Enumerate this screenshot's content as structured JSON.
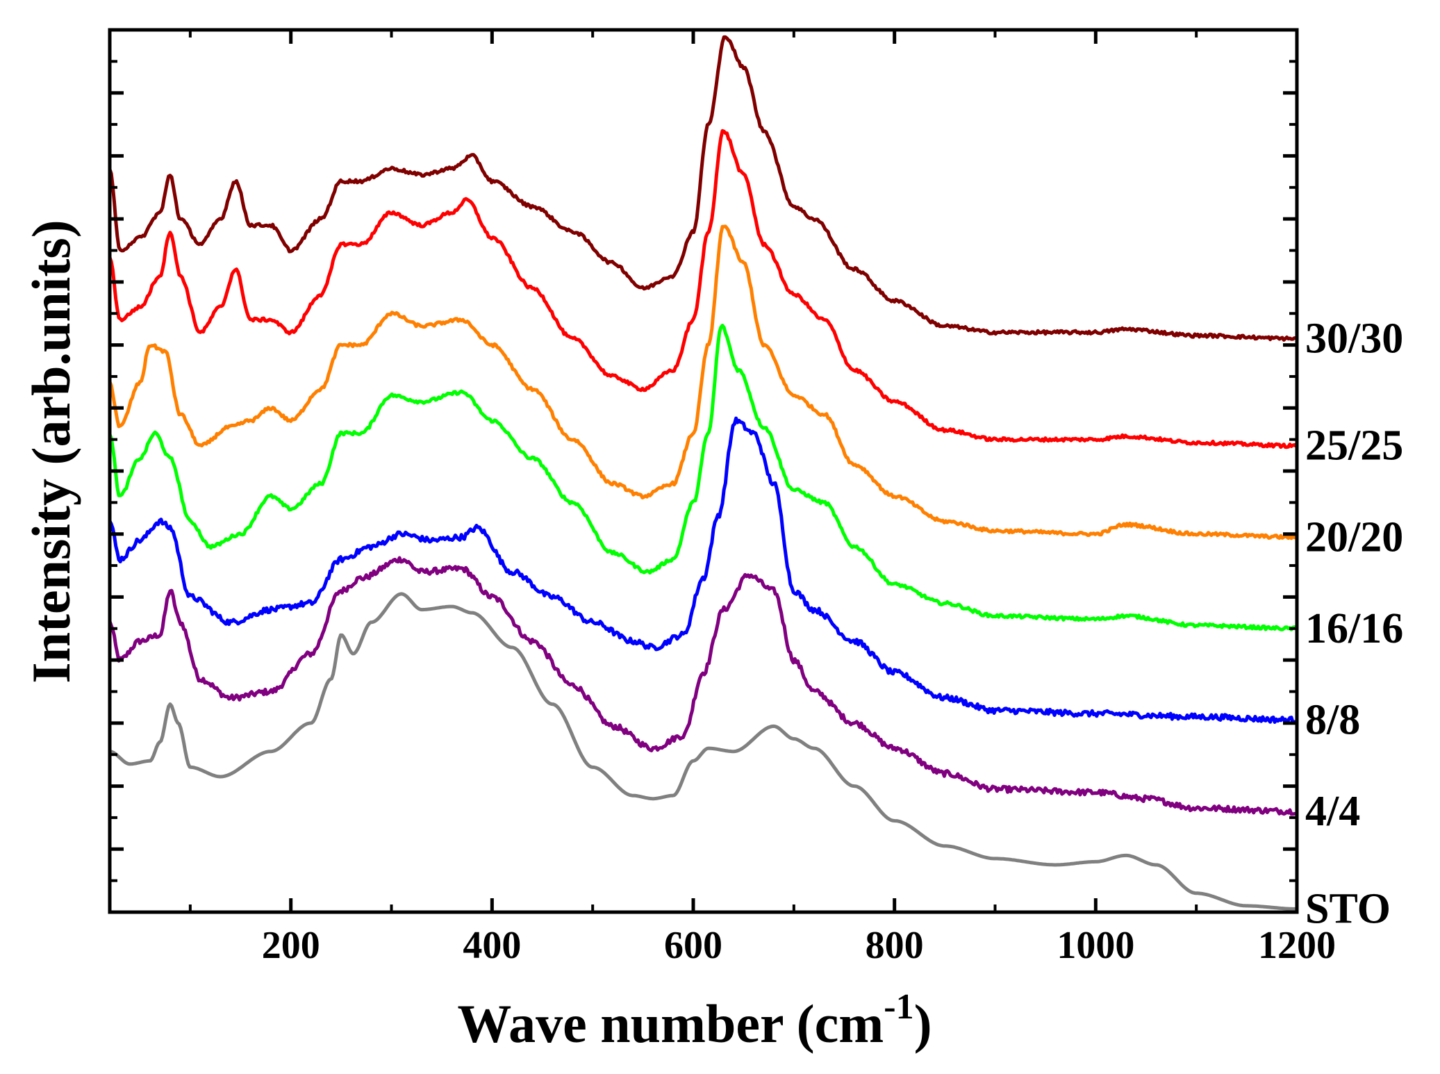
{
  "chart_data": {
    "type": "line",
    "title": "",
    "xlabel": "Wave number (cm",
    "xlabel_superscript": "-1",
    "xlabel_close": ")",
    "ylabel": "Intensity (arb.units)",
    "xlim": [
      20,
      1200
    ],
    "ylim": [
      0,
      14
    ],
    "x_ticks": [
      200,
      400,
      600,
      800,
      1000,
      1200
    ],
    "x_tick_labels": [
      "200",
      "400",
      "600",
      "800",
      "1000",
      "1200"
    ],
    "y_tick_labels_shown": false,
    "grid": false,
    "legend": "labels at right end of each trace",
    "series": [
      {
        "name": "STO",
        "color": "#808080",
        "points": [
          [
            20,
            2.55
          ],
          [
            40,
            2.35
          ],
          [
            60,
            2.4
          ],
          [
            70,
            2.7
          ],
          [
            80,
            3.3
          ],
          [
            88,
            3.0
          ],
          [
            100,
            2.3
          ],
          [
            130,
            2.15
          ],
          [
            180,
            2.55
          ],
          [
            220,
            3.0
          ],
          [
            240,
            3.7
          ],
          [
            250,
            4.4
          ],
          [
            262,
            4.1
          ],
          [
            280,
            4.6
          ],
          [
            310,
            5.05
          ],
          [
            330,
            4.8
          ],
          [
            360,
            4.85
          ],
          [
            380,
            4.75
          ],
          [
            420,
            4.2
          ],
          [
            460,
            3.3
          ],
          [
            500,
            2.3
          ],
          [
            540,
            1.85
          ],
          [
            560,
            1.8
          ],
          [
            580,
            1.85
          ],
          [
            600,
            2.4
          ],
          [
            615,
            2.6
          ],
          [
            640,
            2.55
          ],
          [
            680,
            2.95
          ],
          [
            700,
            2.75
          ],
          [
            720,
            2.6
          ],
          [
            760,
            2.0
          ],
          [
            800,
            1.45
          ],
          [
            850,
            1.05
          ],
          [
            900,
            0.85
          ],
          [
            960,
            0.75
          ],
          [
            1000,
            0.8
          ],
          [
            1030,
            0.9
          ],
          [
            1060,
            0.75
          ],
          [
            1100,
            0.3
          ],
          [
            1150,
            0.1
          ],
          [
            1200,
            0.05
          ]
        ]
      },
      {
        "name": "4/4",
        "color": "#800080",
        "points": [
          [
            20,
            4.6
          ],
          [
            30,
            4.0
          ],
          [
            50,
            4.3
          ],
          [
            70,
            4.4
          ],
          [
            80,
            5.1
          ],
          [
            90,
            4.6
          ],
          [
            110,
            3.7
          ],
          [
            140,
            3.4
          ],
          [
            180,
            3.5
          ],
          [
            220,
            4.1
          ],
          [
            250,
            5.1
          ],
          [
            270,
            5.3
          ],
          [
            310,
            5.6
          ],
          [
            330,
            5.4
          ],
          [
            370,
            5.45
          ],
          [
            400,
            5.0
          ],
          [
            440,
            4.3
          ],
          [
            480,
            3.6
          ],
          [
            520,
            2.95
          ],
          [
            560,
            2.6
          ],
          [
            590,
            2.8
          ],
          [
            610,
            3.8
          ],
          [
            630,
            4.8
          ],
          [
            655,
            5.35
          ],
          [
            680,
            5.1
          ],
          [
            700,
            4.0
          ],
          [
            720,
            3.5
          ],
          [
            760,
            3.0
          ],
          [
            800,
            2.6
          ],
          [
            850,
            2.2
          ],
          [
            900,
            1.95
          ],
          [
            1000,
            1.9
          ],
          [
            1050,
            1.8
          ],
          [
            1100,
            1.65
          ],
          [
            1200,
            1.6
          ]
        ]
      },
      {
        "name": "8/8",
        "color": "#0000ff",
        "points": [
          [
            20,
            6.2
          ],
          [
            30,
            5.6
          ],
          [
            50,
            5.9
          ],
          [
            70,
            6.2
          ],
          [
            80,
            6.1
          ],
          [
            100,
            5.0
          ],
          [
            140,
            4.6
          ],
          [
            180,
            4.8
          ],
          [
            220,
            4.9
          ],
          [
            250,
            5.6
          ],
          [
            280,
            5.8
          ],
          [
            310,
            6.0
          ],
          [
            340,
            5.9
          ],
          [
            370,
            5.95
          ],
          [
            385,
            6.1
          ],
          [
            420,
            5.4
          ],
          [
            460,
            5.0
          ],
          [
            500,
            4.6
          ],
          [
            540,
            4.3
          ],
          [
            560,
            4.2
          ],
          [
            590,
            4.4
          ],
          [
            610,
            5.3
          ],
          [
            625,
            6.3
          ],
          [
            642,
            7.8
          ],
          [
            660,
            7.6
          ],
          [
            680,
            6.8
          ],
          [
            700,
            5.1
          ],
          [
            720,
            4.8
          ],
          [
            760,
            4.3
          ],
          [
            800,
            3.8
          ],
          [
            850,
            3.4
          ],
          [
            900,
            3.2
          ],
          [
            1000,
            3.15
          ],
          [
            1100,
            3.1
          ],
          [
            1200,
            3.05
          ]
        ]
      },
      {
        "name": "16/16",
        "color": "#00ff00",
        "points": [
          [
            20,
            7.6
          ],
          [
            30,
            6.6
          ],
          [
            50,
            7.2
          ],
          [
            65,
            7.6
          ],
          [
            80,
            7.2
          ],
          [
            100,
            6.2
          ],
          [
            120,
            5.8
          ],
          [
            150,
            6.0
          ],
          [
            180,
            6.6
          ],
          [
            200,
            6.4
          ],
          [
            230,
            6.8
          ],
          [
            250,
            7.6
          ],
          [
            270,
            7.6
          ],
          [
            300,
            8.2
          ],
          [
            330,
            8.1
          ],
          [
            370,
            8.25
          ],
          [
            400,
            7.8
          ],
          [
            440,
            7.2
          ],
          [
            480,
            6.5
          ],
          [
            520,
            5.7
          ],
          [
            555,
            5.4
          ],
          [
            580,
            5.6
          ],
          [
            600,
            6.5
          ],
          [
            615,
            7.6
          ],
          [
            628,
            9.3
          ],
          [
            645,
            8.6
          ],
          [
            670,
            7.7
          ],
          [
            700,
            6.7
          ],
          [
            730,
            6.5
          ],
          [
            760,
            5.8
          ],
          [
            800,
            5.2
          ],
          [
            850,
            4.9
          ],
          [
            900,
            4.7
          ],
          [
            1000,
            4.65
          ],
          [
            1030,
            4.7
          ],
          [
            1100,
            4.55
          ],
          [
            1200,
            4.5
          ]
        ]
      },
      {
        "name": "20/20",
        "color": "#ff8000",
        "points": [
          [
            20,
            8.4
          ],
          [
            30,
            7.7
          ],
          [
            50,
            8.4
          ],
          [
            60,
            9.0
          ],
          [
            75,
            8.9
          ],
          [
            90,
            7.9
          ],
          [
            110,
            7.4
          ],
          [
            140,
            7.7
          ],
          [
            160,
            7.8
          ],
          [
            180,
            8.0
          ],
          [
            200,
            7.8
          ],
          [
            230,
            8.3
          ],
          [
            250,
            9.0
          ],
          [
            270,
            9.0
          ],
          [
            300,
            9.5
          ],
          [
            330,
            9.3
          ],
          [
            370,
            9.4
          ],
          [
            400,
            9.0
          ],
          [
            440,
            8.3
          ],
          [
            480,
            7.5
          ],
          [
            520,
            6.8
          ],
          [
            550,
            6.6
          ],
          [
            580,
            6.8
          ],
          [
            600,
            7.6
          ],
          [
            615,
            9.0
          ],
          [
            630,
            10.9
          ],
          [
            650,
            10.3
          ],
          [
            670,
            9.0
          ],
          [
            700,
            8.2
          ],
          [
            730,
            7.9
          ],
          [
            760,
            7.1
          ],
          [
            800,
            6.6
          ],
          [
            850,
            6.2
          ],
          [
            900,
            6.05
          ],
          [
            1000,
            6.0
          ],
          [
            1030,
            6.15
          ],
          [
            1100,
            6.0
          ],
          [
            1200,
            5.95
          ]
        ]
      },
      {
        "name": "25/25",
        "color": "#ff0000",
        "points": [
          [
            20,
            10.4
          ],
          [
            30,
            9.4
          ],
          [
            50,
            9.6
          ],
          [
            70,
            10.1
          ],
          [
            80,
            10.8
          ],
          [
            90,
            10.1
          ],
          [
            110,
            9.2
          ],
          [
            130,
            9.6
          ],
          [
            145,
            10.2
          ],
          [
            160,
            9.4
          ],
          [
            180,
            9.4
          ],
          [
            200,
            9.2
          ],
          [
            230,
            9.8
          ],
          [
            250,
            10.6
          ],
          [
            270,
            10.6
          ],
          [
            300,
            11.1
          ],
          [
            330,
            10.9
          ],
          [
            360,
            11.1
          ],
          [
            375,
            11.3
          ],
          [
            400,
            10.7
          ],
          [
            440,
            9.9
          ],
          [
            480,
            9.1
          ],
          [
            520,
            8.5
          ],
          [
            550,
            8.3
          ],
          [
            580,
            8.6
          ],
          [
            600,
            9.4
          ],
          [
            615,
            10.8
          ],
          [
            630,
            12.4
          ],
          [
            650,
            11.7
          ],
          [
            670,
            10.6
          ],
          [
            700,
            9.8
          ],
          [
            730,
            9.4
          ],
          [
            760,
            8.6
          ],
          [
            800,
            8.1
          ],
          [
            850,
            7.65
          ],
          [
            900,
            7.5
          ],
          [
            1000,
            7.5
          ],
          [
            1030,
            7.55
          ],
          [
            1100,
            7.45
          ],
          [
            1200,
            7.4
          ]
        ]
      },
      {
        "name": "30/30",
        "color": "#800000",
        "points": [
          [
            20,
            11.8
          ],
          [
            30,
            10.5
          ],
          [
            50,
            10.7
          ],
          [
            70,
            11.1
          ],
          [
            80,
            11.7
          ],
          [
            90,
            11.0
          ],
          [
            110,
            10.6
          ],
          [
            130,
            11.0
          ],
          [
            145,
            11.6
          ],
          [
            160,
            10.9
          ],
          [
            180,
            10.9
          ],
          [
            200,
            10.5
          ],
          [
            230,
            11.0
          ],
          [
            250,
            11.6
          ],
          [
            270,
            11.6
          ],
          [
            300,
            11.8
          ],
          [
            330,
            11.7
          ],
          [
            360,
            11.8
          ],
          [
            380,
            12.0
          ],
          [
            400,
            11.6
          ],
          [
            440,
            11.2
          ],
          [
            480,
            10.8
          ],
          [
            520,
            10.3
          ],
          [
            550,
            9.9
          ],
          [
            580,
            10.1
          ],
          [
            600,
            10.8
          ],
          [
            615,
            12.5
          ],
          [
            632,
            13.9
          ],
          [
            650,
            13.4
          ],
          [
            670,
            12.4
          ],
          [
            700,
            11.2
          ],
          [
            720,
            11.0
          ],
          [
            760,
            10.2
          ],
          [
            800,
            9.7
          ],
          [
            850,
            9.3
          ],
          [
            900,
            9.2
          ],
          [
            1000,
            9.2
          ],
          [
            1030,
            9.25
          ],
          [
            1100,
            9.15
          ],
          [
            1200,
            9.1
          ]
        ]
      }
    ]
  }
}
